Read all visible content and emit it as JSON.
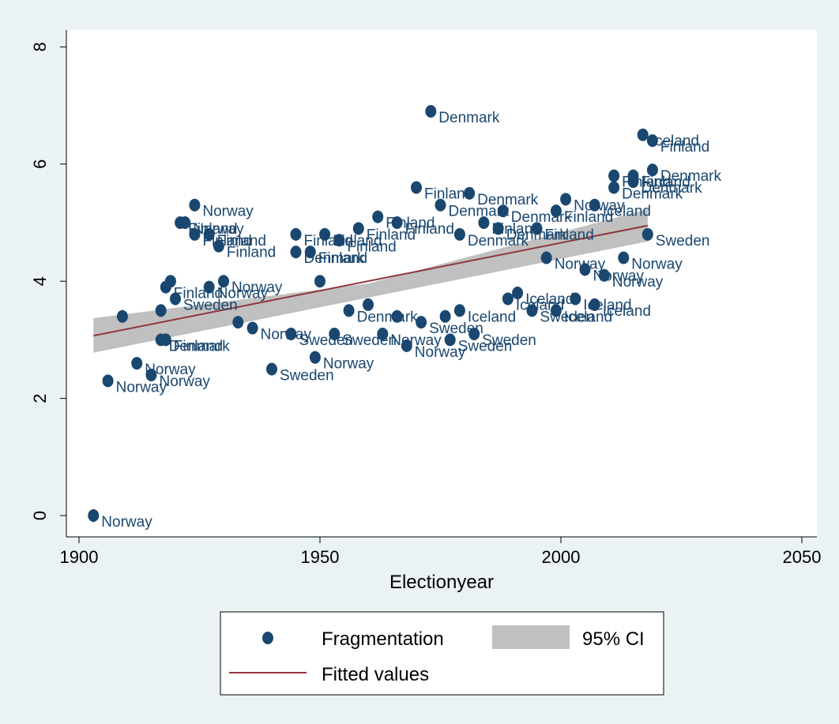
{
  "chart_data": {
    "type": "scatter",
    "title": "",
    "xlabel": "Electionyear",
    "ylabel": "",
    "xlim": [
      1900,
      2050
    ],
    "ylim": [
      0,
      8
    ],
    "xticks": [
      1900,
      1950,
      2000,
      2050
    ],
    "yticks": [
      0,
      2,
      4,
      6,
      8
    ],
    "grid": false,
    "legend_position": "bottom",
    "legend": [
      {
        "key": "scatter",
        "label": "Fragmentation"
      },
      {
        "key": "ci",
        "label": "95% CI"
      },
      {
        "key": "fit",
        "label": "Fitted values"
      }
    ],
    "colors": {
      "points": "#1a476f",
      "labels": "#1a476f",
      "fit_line": "#90353b",
      "ci_band": "#c0c0c0",
      "plot_background": "#ffffff",
      "page_background": "#eaf2f3"
    },
    "fitted_line": {
      "x": [
        1903,
        2018
      ],
      "y": [
        3.07,
        4.95
      ]
    },
    "ci_band": {
      "x": [
        1903,
        1960,
        2018
      ],
      "lower": [
        2.78,
        3.72,
        4.68
      ],
      "upper": [
        3.37,
        3.96,
        5.23
      ]
    },
    "series": [
      {
        "name": "Fragmentation",
        "points": [
          {
            "x": 1903,
            "y": 0.0,
            "label": "Norway"
          },
          {
            "x": 1906,
            "y": 2.3,
            "label": "Norway"
          },
          {
            "x": 1912,
            "y": 2.6,
            "label": "Norway"
          },
          {
            "x": 1915,
            "y": 2.4,
            "label": "Norway"
          },
          {
            "x": 1909,
            "y": 3.4,
            "label": ""
          },
          {
            "x": 1917,
            "y": 3.0,
            "label": "Denmark"
          },
          {
            "x": 1918,
            "y": 3.0,
            "label": "Finland"
          },
          {
            "x": 1917,
            "y": 3.5,
            "label": ""
          },
          {
            "x": 1918,
            "y": 3.9,
            "label": "Finland"
          },
          {
            "x": 1919,
            "y": 4.0,
            "label": ""
          },
          {
            "x": 1920,
            "y": 3.7,
            "label": "Sweden"
          },
          {
            "x": 1921,
            "y": 5.0,
            "label": "Finland"
          },
          {
            "x": 1922,
            "y": 5.0,
            "label": "Norway"
          },
          {
            "x": 1924,
            "y": 5.3,
            "label": "Norway"
          },
          {
            "x": 1924,
            "y": 4.8,
            "label": "Finland"
          },
          {
            "x": 1927,
            "y": 4.8,
            "label": "Finland"
          },
          {
            "x": 1927,
            "y": 3.9,
            "label": "Norway"
          },
          {
            "x": 1929,
            "y": 4.6,
            "label": "Finland"
          },
          {
            "x": 1930,
            "y": 4.0,
            "label": "Norway"
          },
          {
            "x": 1933,
            "y": 3.3,
            "label": ""
          },
          {
            "x": 1936,
            "y": 3.2,
            "label": "Norway"
          },
          {
            "x": 1940,
            "y": 2.5,
            "label": "Sweden"
          },
          {
            "x": 1944,
            "y": 3.1,
            "label": "Sweden"
          },
          {
            "x": 1945,
            "y": 4.8,
            "label": "Finland"
          },
          {
            "x": 1945,
            "y": 4.5,
            "label": "Denmark"
          },
          {
            "x": 1948,
            "y": 4.5,
            "label": "Finland"
          },
          {
            "x": 1949,
            "y": 2.7,
            "label": "Norway"
          },
          {
            "x": 1950,
            "y": 4.0,
            "label": ""
          },
          {
            "x": 1951,
            "y": 4.8,
            "label": "Finland"
          },
          {
            "x": 1953,
            "y": 3.1,
            "label": "Sweden"
          },
          {
            "x": 1954,
            "y": 4.7,
            "label": "Finland"
          },
          {
            "x": 1956,
            "y": 3.5,
            "label": "Denmark"
          },
          {
            "x": 1958,
            "y": 4.9,
            "label": "Finland"
          },
          {
            "x": 1960,
            "y": 3.6,
            "label": ""
          },
          {
            "x": 1962,
            "y": 5.1,
            "label": "Finland"
          },
          {
            "x": 1963,
            "y": 3.1,
            "label": "Norway"
          },
          {
            "x": 1966,
            "y": 5.0,
            "label": "Finland"
          },
          {
            "x": 1966,
            "y": 3.4,
            "label": ""
          },
          {
            "x": 1968,
            "y": 2.9,
            "label": "Norway"
          },
          {
            "x": 1970,
            "y": 5.6,
            "label": "Finland"
          },
          {
            "x": 1971,
            "y": 3.3,
            "label": "Sweden"
          },
          {
            "x": 1973,
            "y": 6.9,
            "label": "Denmark"
          },
          {
            "x": 1975,
            "y": 5.3,
            "label": "Denmark"
          },
          {
            "x": 1976,
            "y": 3.4,
            "label": ""
          },
          {
            "x": 1977,
            "y": 3.0,
            "label": "Sweden"
          },
          {
            "x": 1979,
            "y": 4.8,
            "label": "Denmark"
          },
          {
            "x": 1979,
            "y": 3.5,
            "label": "Iceland"
          },
          {
            "x": 1981,
            "y": 5.5,
            "label": "Denmark"
          },
          {
            "x": 1982,
            "y": 3.1,
            "label": "Sweden"
          },
          {
            "x": 1984,
            "y": 5.0,
            "label": "Finland"
          },
          {
            "x": 1987,
            "y": 4.9,
            "label": "Denmark"
          },
          {
            "x": 1988,
            "y": 5.2,
            "label": "Denmark"
          },
          {
            "x": 1989,
            "y": 3.7,
            "label": "Iceland"
          },
          {
            "x": 1991,
            "y": 3.8,
            "label": "Iceland"
          },
          {
            "x": 1994,
            "y": 3.5,
            "label": "Sweden"
          },
          {
            "x": 1995,
            "y": 4.9,
            "label": "Finland"
          },
          {
            "x": 1997,
            "y": 4.4,
            "label": "Norway"
          },
          {
            "x": 1999,
            "y": 5.2,
            "label": "Finland"
          },
          {
            "x": 1999,
            "y": 3.5,
            "label": "Iceland"
          },
          {
            "x": 2001,
            "y": 5.4,
            "label": "Norway"
          },
          {
            "x": 2003,
            "y": 3.7,
            "label": "Iceland"
          },
          {
            "x": 2005,
            "y": 4.2,
            "label": "Norway"
          },
          {
            "x": 2007,
            "y": 5.3,
            "label": "Iceland"
          },
          {
            "x": 2007,
            "y": 3.6,
            "label": "Iceland"
          },
          {
            "x": 2009,
            "y": 4.1,
            "label": "Norway"
          },
          {
            "x": 2011,
            "y": 5.8,
            "label": "Finland"
          },
          {
            "x": 2011,
            "y": 5.6,
            "label": "Denmark"
          },
          {
            "x": 2013,
            "y": 4.4,
            "label": "Norway"
          },
          {
            "x": 2015,
            "y": 5.8,
            "label": "Finland"
          },
          {
            "x": 2015,
            "y": 5.7,
            "label": "Denmark"
          },
          {
            "x": 2017,
            "y": 6.5,
            "label": "Iceland"
          },
          {
            "x": 2018,
            "y": 4.8,
            "label": "Sweden"
          },
          {
            "x": 2019,
            "y": 6.4,
            "label": "Finland"
          },
          {
            "x": 2019,
            "y": 5.9,
            "label": "Denmark"
          }
        ]
      }
    ]
  }
}
